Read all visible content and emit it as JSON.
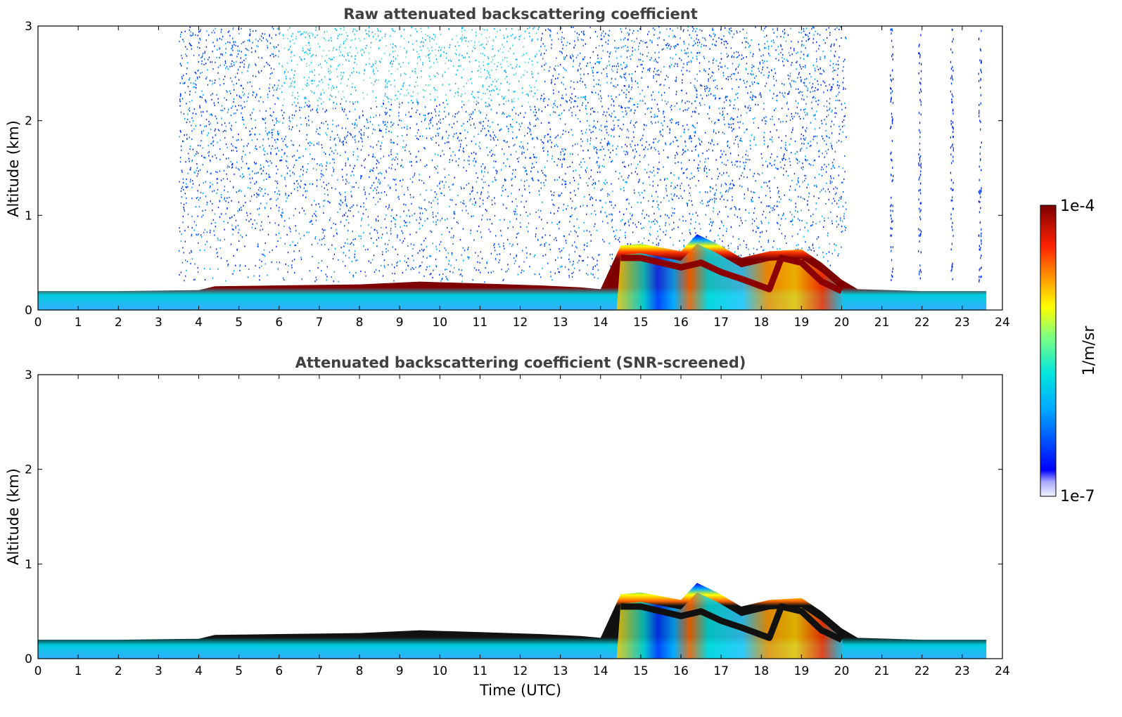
{
  "chart_data": [
    {
      "type": "heatmap",
      "id": "raw",
      "title": "Raw attenuated backscattering coefficient",
      "xlabel": "",
      "ylabel": "Altitude (km)",
      "xlim": [
        0,
        24
      ],
      "ylim": [
        0,
        3
      ],
      "x_ticks": [
        "0",
        "1",
        "2",
        "3",
        "4",
        "5",
        "6",
        "7",
        "8",
        "9",
        "10",
        "11",
        "12",
        "13",
        "14",
        "15",
        "16",
        "17",
        "18",
        "19",
        "20",
        "21",
        "22",
        "23",
        "24"
      ],
      "y_ticks": [
        "0",
        "1",
        "2",
        "3"
      ],
      "layer_top_km": [
        [
          0,
          0.2
        ],
        [
          2,
          0.2
        ],
        [
          4,
          0.21
        ],
        [
          4.4,
          0.25
        ],
        [
          6,
          0.26
        ],
        [
          8,
          0.27
        ],
        [
          9.5,
          0.3
        ],
        [
          11,
          0.28
        ],
        [
          12.5,
          0.26
        ],
        [
          13.5,
          0.24
        ],
        [
          14,
          0.22
        ],
        [
          14.5,
          0.68
        ],
        [
          15,
          0.7
        ],
        [
          16,
          0.62
        ],
        [
          16.4,
          0.8
        ],
        [
          16.9,
          0.7
        ],
        [
          17.5,
          0.55
        ],
        [
          18.2,
          0.62
        ],
        [
          19,
          0.64
        ],
        [
          19.5,
          0.5
        ],
        [
          20,
          0.32
        ],
        [
          20.4,
          0.22
        ],
        [
          22,
          0.2
        ],
        [
          23.6,
          0.2
        ]
      ],
      "noise_blocks": [
        [
          3.5,
          14.5,
          0.3
        ],
        [
          14.5,
          20.1,
          0.45
        ]
      ],
      "noise_columns": [
        21.2,
        21.9,
        22.7,
        23.4
      ],
      "masking": "raw"
    },
    {
      "type": "heatmap",
      "id": "snr",
      "title": "Attenuated backscattering coefficient (SNR-screened)",
      "xlabel": "Time (UTC)",
      "ylabel": "Altitude (km)",
      "xlim": [
        0,
        24
      ],
      "ylim": [
        0,
        3
      ],
      "x_ticks": [
        "0",
        "1",
        "2",
        "3",
        "4",
        "5",
        "6",
        "7",
        "8",
        "9",
        "10",
        "11",
        "12",
        "13",
        "14",
        "15",
        "16",
        "17",
        "18",
        "19",
        "20",
        "21",
        "22",
        "23",
        "24"
      ],
      "y_ticks": [
        "0",
        "1",
        "2",
        "3"
      ],
      "layer_top_km": [
        [
          0,
          0.2
        ],
        [
          2,
          0.2
        ],
        [
          4,
          0.21
        ],
        [
          4.4,
          0.25
        ],
        [
          6,
          0.26
        ],
        [
          8,
          0.27
        ],
        [
          9.5,
          0.3
        ],
        [
          11,
          0.28
        ],
        [
          12.5,
          0.26
        ],
        [
          13.5,
          0.24
        ],
        [
          14,
          0.22
        ],
        [
          14.5,
          0.68
        ],
        [
          15,
          0.7
        ],
        [
          16,
          0.62
        ],
        [
          16.4,
          0.8
        ],
        [
          16.9,
          0.7
        ],
        [
          17.5,
          0.55
        ],
        [
          18.2,
          0.62
        ],
        [
          19,
          0.64
        ],
        [
          19.5,
          0.5
        ],
        [
          20,
          0.32
        ],
        [
          20.4,
          0.22
        ],
        [
          22,
          0.2
        ],
        [
          23.6,
          0.2
        ]
      ],
      "noise_blocks": [],
      "noise_columns": [],
      "masking": "snr"
    }
  ],
  "colorbar": {
    "label": "1/m/sr",
    "max_label": "1e-4",
    "min_label": "1e-7",
    "scale": "log",
    "range": [
      1e-07,
      0.0001
    ],
    "colormap": "jet"
  }
}
